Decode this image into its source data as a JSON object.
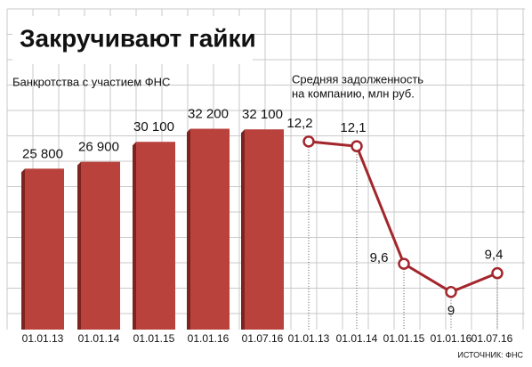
{
  "title": "Закручивают гайки",
  "source": "ИСТОЧНИК: ФНС",
  "chart_data": [
    {
      "type": "bar",
      "title": "Банкротства с участием ФНС",
      "categories": [
        "01.01.13",
        "01.01.14",
        "01.01.15",
        "01.01.16",
        "01.07.16"
      ],
      "values": [
        25800,
        26900,
        30100,
        32200,
        32100
      ],
      "value_labels": [
        "25 800",
        "26 900",
        "30 100",
        "32 200",
        "32 100"
      ],
      "color": "#b9423d",
      "ylim": [
        0,
        40700
      ]
    },
    {
      "type": "line",
      "title": [
        "Средняя задолженность",
        "на компанию, млн руб."
      ],
      "categories": [
        "01.01.13",
        "01.01.14",
        "01.01.15",
        "01.01.16",
        "01.07.16"
      ],
      "values": [
        12.2,
        12.1,
        9.6,
        9,
        9.4
      ],
      "value_labels": [
        "12,2",
        "12,1",
        "9,6",
        "9",
        "9,4"
      ],
      "color": "#a3262c",
      "ylim": [
        8.2,
        13.6
      ]
    }
  ]
}
